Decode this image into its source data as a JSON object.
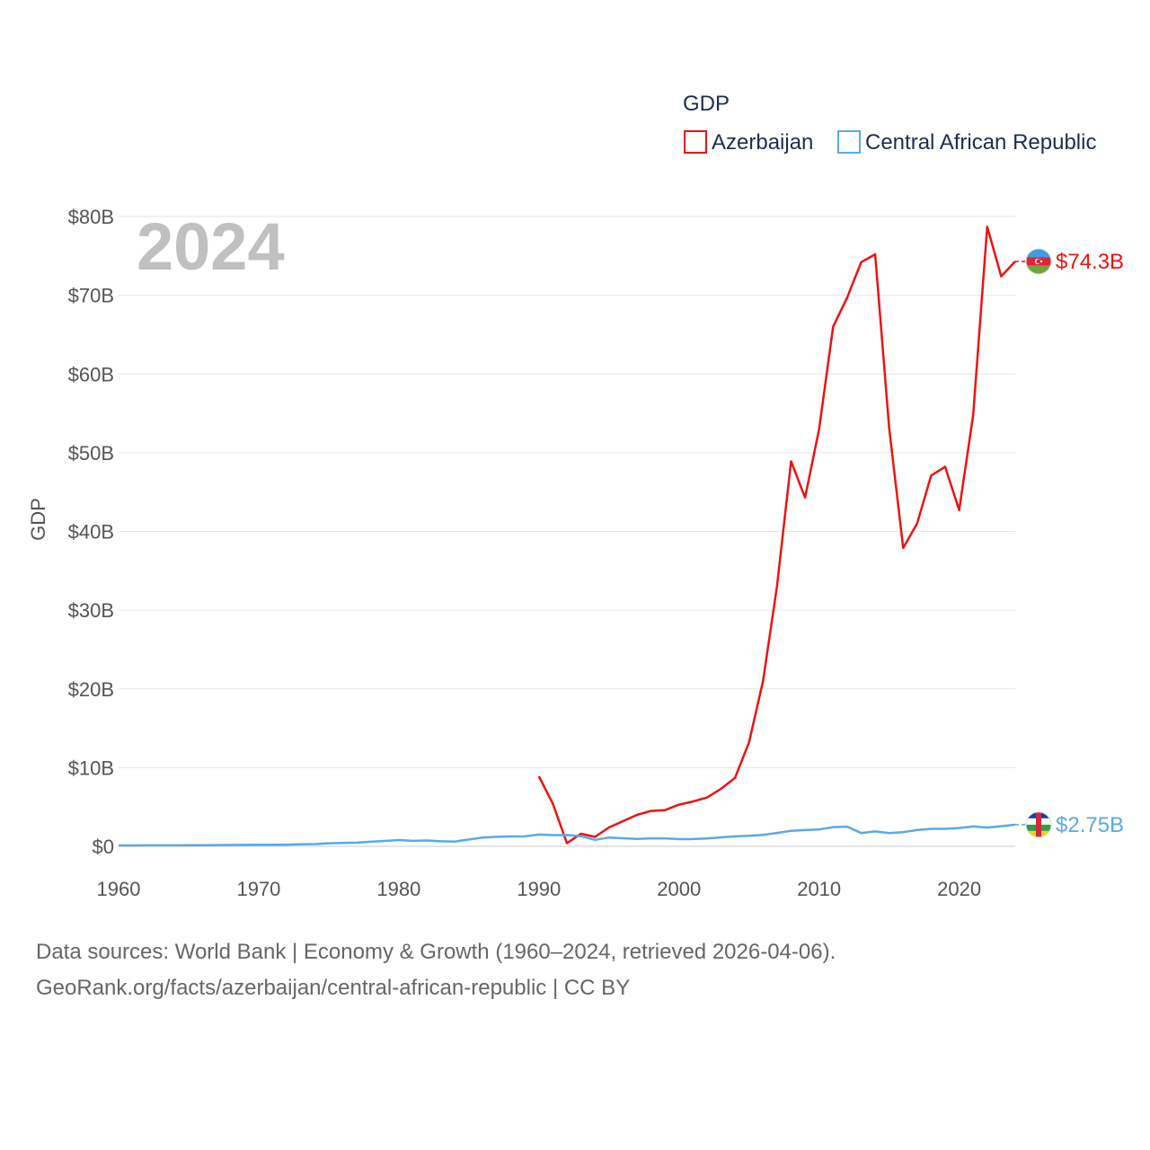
{
  "chart_data": {
    "type": "line",
    "legend_title": "GDP",
    "ylabel": "GDP",
    "year_overlay": "2024",
    "xlim": [
      1960,
      2024
    ],
    "ylim": [
      0,
      80
    ],
    "x_ticks": [
      1960,
      1970,
      1980,
      1990,
      2000,
      2010,
      2020
    ],
    "x_tick_labels": [
      "1960",
      "1970",
      "1980",
      "1990",
      "2000",
      "2010",
      "2020"
    ],
    "y_ticks": [
      0,
      10,
      20,
      30,
      40,
      50,
      60,
      70,
      80
    ],
    "y_tick_labels": [
      "$0",
      "$10B",
      "$20B",
      "$30B",
      "$40B",
      "$50B",
      "$60B",
      "$70B",
      "$80B"
    ],
    "grid": true,
    "legend_position": "top-right",
    "units": "billion USD",
    "series": [
      {
        "name": "Azerbaijan",
        "color": "#ee1111",
        "end_label": "$74.3B",
        "flag_icon": "azerbaijan-flag-icon",
        "x": [
          1990,
          1991,
          1992,
          1993,
          1994,
          1995,
          1996,
          1997,
          1998,
          1999,
          2000,
          2001,
          2002,
          2003,
          2004,
          2005,
          2006,
          2007,
          2008,
          2009,
          2010,
          2011,
          2012,
          2013,
          2014,
          2015,
          2016,
          2017,
          2018,
          2019,
          2020,
          2021,
          2022,
          2023,
          2024
        ],
        "values": [
          8.9,
          5.4,
          0.4,
          1.6,
          1.2,
          2.4,
          3.2,
          4.0,
          4.5,
          4.6,
          5.3,
          5.7,
          6.2,
          7.3,
          8.7,
          13.2,
          21.0,
          33.1,
          48.9,
          44.3,
          53.0,
          66.0,
          69.7,
          74.2,
          75.2,
          53.1,
          37.9,
          41.0,
          47.1,
          48.2,
          42.7,
          54.8,
          78.7,
          72.4,
          74.3
        ]
      },
      {
        "name": "Central African Republic",
        "color": "#5aa9e6",
        "end_label": "$2.75B",
        "flag_icon": "central-african-republic-flag-icon",
        "x": [
          1960,
          1961,
          1962,
          1963,
          1964,
          1965,
          1966,
          1967,
          1968,
          1969,
          1970,
          1971,
          1972,
          1973,
          1974,
          1975,
          1976,
          1977,
          1978,
          1979,
          1980,
          1981,
          1982,
          1983,
          1984,
          1985,
          1986,
          1987,
          1988,
          1989,
          1990,
          1991,
          1992,
          1993,
          1994,
          1995,
          1996,
          1997,
          1998,
          1999,
          2000,
          2001,
          2002,
          2003,
          2004,
          2005,
          2006,
          2007,
          2008,
          2009,
          2010,
          2011,
          2012,
          2013,
          2014,
          2015,
          2016,
          2017,
          2018,
          2019,
          2020,
          2021,
          2022,
          2023,
          2024
        ],
        "values": [
          0.11,
          0.11,
          0.12,
          0.12,
          0.13,
          0.14,
          0.15,
          0.16,
          0.17,
          0.18,
          0.19,
          0.2,
          0.22,
          0.26,
          0.29,
          0.39,
          0.43,
          0.47,
          0.58,
          0.68,
          0.8,
          0.7,
          0.74,
          0.64,
          0.61,
          0.87,
          1.12,
          1.21,
          1.26,
          1.27,
          1.49,
          1.43,
          1.44,
          1.29,
          0.82,
          1.12,
          1.03,
          0.94,
          1.01,
          1.02,
          0.91,
          0.93,
          0.99,
          1.14,
          1.27,
          1.35,
          1.46,
          1.7,
          1.98,
          2.06,
          2.14,
          2.44,
          2.5,
          1.69,
          1.89,
          1.68,
          1.8,
          2.07,
          2.22,
          2.22,
          2.33,
          2.52,
          2.38,
          2.56,
          2.75
        ]
      }
    ]
  },
  "source": {
    "line1": "Data sources: World Bank | Economy & Growth (1960–2024, retrieved 2026-04-06).",
    "line2": "GeoRank.org/facts/azerbaijan/central-african-republic | CC BY"
  }
}
